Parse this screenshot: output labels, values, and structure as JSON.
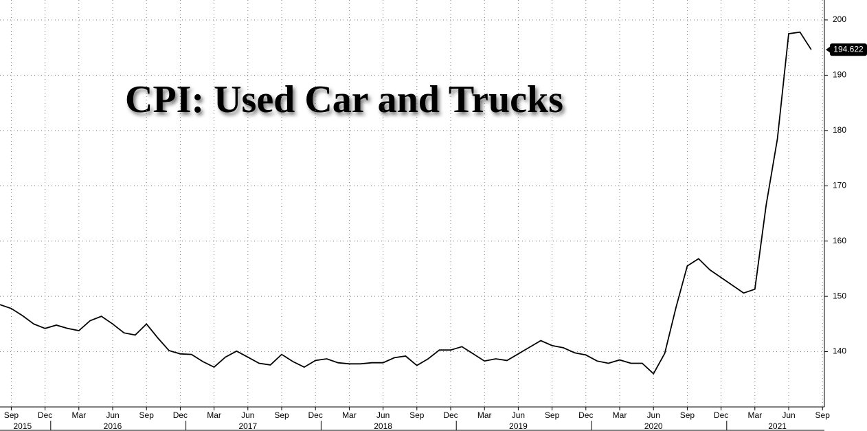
{
  "chart_data": {
    "type": "line",
    "title": "CPI: Used Car and Trucks",
    "x": [
      "2015-08",
      "2015-09",
      "2015-10",
      "2015-11",
      "2015-12",
      "2016-01",
      "2016-02",
      "2016-03",
      "2016-04",
      "2016-05",
      "2016-06",
      "2016-07",
      "2016-08",
      "2016-09",
      "2016-10",
      "2016-11",
      "2016-12",
      "2017-01",
      "2017-02",
      "2017-03",
      "2017-04",
      "2017-05",
      "2017-06",
      "2017-07",
      "2017-08",
      "2017-09",
      "2017-10",
      "2017-11",
      "2017-12",
      "2018-01",
      "2018-02",
      "2018-03",
      "2018-04",
      "2018-05",
      "2018-06",
      "2018-07",
      "2018-08",
      "2018-09",
      "2018-10",
      "2018-11",
      "2018-12",
      "2019-01",
      "2019-02",
      "2019-03",
      "2019-04",
      "2019-05",
      "2019-06",
      "2019-07",
      "2019-08",
      "2019-09",
      "2019-10",
      "2019-11",
      "2019-12",
      "2020-01",
      "2020-02",
      "2020-03",
      "2020-04",
      "2020-05",
      "2020-06",
      "2020-07",
      "2020-08",
      "2020-09",
      "2020-10",
      "2020-11",
      "2020-12",
      "2021-01",
      "2021-02",
      "2021-03",
      "2021-04",
      "2021-05",
      "2021-06",
      "2021-07",
      "2021-08"
    ],
    "series": [
      {
        "color": "#000000",
        "values": [
          148.5,
          147.8,
          146.5,
          145,
          144.2,
          144.8,
          144.2,
          143.8,
          145.6,
          146.4,
          145,
          143.4,
          143,
          145,
          142.5,
          140.2,
          139.6,
          139.5,
          138.2,
          137.2,
          139,
          140.1,
          139,
          137.9,
          137.6,
          139.5,
          138.2,
          137.2,
          138.4,
          138.7,
          138,
          137.8,
          137.8,
          138,
          138,
          138.9,
          139.2,
          137.5,
          138.7,
          140.3,
          140.3,
          140.9,
          139.6,
          138.3,
          138.7,
          138.4,
          139.6,
          140.8,
          142,
          141.1,
          140.7,
          139.8,
          139.4,
          138.3,
          137.9,
          138.5,
          137.9,
          137.9,
          136,
          139.7,
          148,
          155.5,
          156.8,
          154.8,
          153.4,
          152,
          150.6,
          151.3,
          166.5,
          178.5,
          197.5,
          197.8,
          194.622
        ],
        "value_labels": [
          null,
          null,
          null,
          null,
          null,
          null,
          null,
          null,
          null,
          null,
          null,
          null,
          null,
          null,
          null,
          null,
          null,
          null,
          null,
          null,
          null,
          null,
          null,
          null,
          null,
          null,
          null,
          null,
          null,
          null,
          null,
          null,
          null,
          null,
          null,
          null,
          null,
          null,
          null,
          null,
          null,
          null,
          null,
          null,
          null,
          null,
          null,
          null,
          null,
          null,
          null,
          null,
          null,
          null,
          null,
          null,
          null,
          null,
          null,
          null,
          null,
          null,
          null,
          null,
          null,
          null,
          null,
          null,
          null,
          null,
          null,
          null,
          "194.622"
        ]
      }
    ],
    "ylim": [
      130,
      203.6
    ],
    "yticks": [
      140,
      150,
      160,
      170,
      180,
      190,
      200
    ],
    "xticks": [
      {
        "value": "2015-09",
        "label": "Sep"
      },
      {
        "value": "2015-12",
        "label": "Dec"
      },
      {
        "value": "2016-03",
        "label": "Mar"
      },
      {
        "value": "2016-06",
        "label": "Jun"
      },
      {
        "value": "2016-09",
        "label": "Sep"
      },
      {
        "value": "2016-12",
        "label": "Dec"
      },
      {
        "value": "2017-03",
        "label": "Mar"
      },
      {
        "value": "2017-06",
        "label": "Jun"
      },
      {
        "value": "2017-09",
        "label": "Sep"
      },
      {
        "value": "2017-12",
        "label": "Dec"
      },
      {
        "value": "2018-03",
        "label": "Mar"
      },
      {
        "value": "2018-06",
        "label": "Jun"
      },
      {
        "value": "2018-09",
        "label": "Sep"
      },
      {
        "value": "2018-12",
        "label": "Dec"
      },
      {
        "value": "2019-03",
        "label": "Mar"
      },
      {
        "value": "2019-06",
        "label": "Jun"
      },
      {
        "value": "2019-09",
        "label": "Sep"
      },
      {
        "value": "2019-12",
        "label": "Dec"
      },
      {
        "value": "2020-03",
        "label": "Mar"
      },
      {
        "value": "2020-06",
        "label": "Jun"
      },
      {
        "value": "2020-09",
        "label": "Sep"
      },
      {
        "value": "2020-12",
        "label": "Dec"
      },
      {
        "value": "2021-03",
        "label": "Mar"
      },
      {
        "value": "2021-06",
        "label": "Jun"
      },
      {
        "value": "2021-09",
        "label": "Sep"
      }
    ],
    "year_ticks": [
      {
        "value": "2015-10",
        "label": "2015"
      },
      {
        "value": "2016-06",
        "label": "2016"
      },
      {
        "value": "2017-06",
        "label": "2017"
      },
      {
        "value": "2018-06",
        "label": "2018"
      },
      {
        "value": "2019-06",
        "label": "2019"
      },
      {
        "value": "2020-06",
        "label": "2020"
      },
      {
        "value": "2021-05",
        "label": "2021"
      }
    ],
    "grid": true
  }
}
